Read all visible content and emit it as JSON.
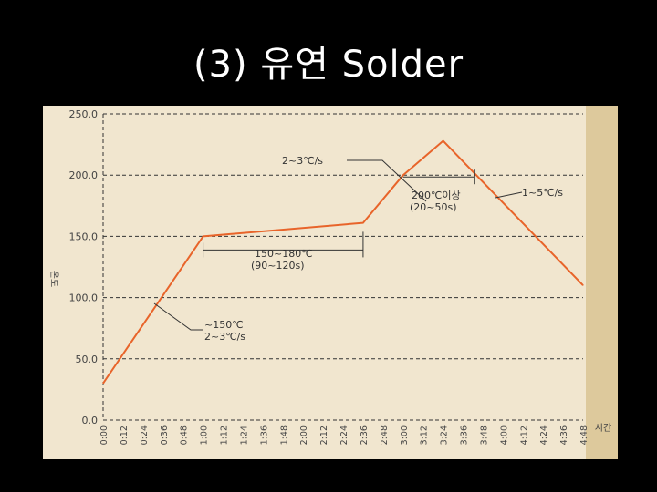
{
  "slide": {
    "title": "(3) 유연 Solder"
  },
  "colors": {
    "background": "#000000",
    "chart_bg": "#f1e6cf",
    "chart_right_strip": "#ddc99c",
    "curve": "#e8642a",
    "grid": "#333333",
    "text": "#444444"
  },
  "chart_data": {
    "type": "line",
    "title": "",
    "xlabel": "시간",
    "ylabel": "온도",
    "ylim": [
      0,
      250
    ],
    "yticks": [
      "250.0",
      "200.0",
      "150.0",
      "100.0",
      "50.0",
      "0.0"
    ],
    "ytick_values": [
      250,
      200,
      150,
      100,
      50,
      0
    ],
    "xticks": [
      "0:00",
      "0:12",
      "0:24",
      "0:36",
      "0:48",
      "1:00",
      "1:12",
      "1:24",
      "1:36",
      "1:48",
      "2:00",
      "2:12",
      "2:24",
      "2:36",
      "2:48",
      "3:00",
      "3:12",
      "3:24",
      "3:36",
      "3:48",
      "4:00",
      "4:12",
      "4:24",
      "4:36",
      "4:48"
    ],
    "grid": true,
    "series": [
      {
        "x": [
          "0:00",
          "1:00",
          "2:36",
          "3:00",
          "3:24",
          "4:48"
        ],
        "y": [
          30,
          150,
          161,
          200,
          228,
          110
        ]
      }
    ],
    "annotations": [
      {
        "text": "2~3℃/s",
        "target_x": "2:48",
        "target_y": 178
      },
      {
        "text": "200℃이상",
        "sub": "(20~50s)"
      },
      {
        "text": "1~5℃/s",
        "target_x": "3:40",
        "target_y": 190
      },
      {
        "text": "150~180℃",
        "sub": "(90~120s)"
      },
      {
        "text": "~150℃",
        "sub": "2~3℃/s",
        "target_x": "0:30",
        "target_y": 95
      }
    ]
  }
}
